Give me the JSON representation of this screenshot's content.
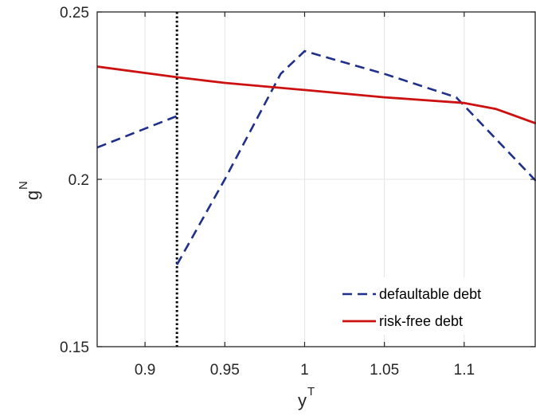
{
  "chart_data": {
    "type": "line",
    "xlabel": {
      "base": "y",
      "sup": "T"
    },
    "ylabel": {
      "base": "g",
      "sup": "N"
    },
    "xlim": [
      0.87,
      1.145
    ],
    "ylim": [
      0.15,
      0.25
    ],
    "xticks": [
      0.9,
      0.95,
      1,
      1.05,
      1.1
    ],
    "xtick_labels": [
      "0.9",
      "0.95",
      "1",
      "1.05",
      "1.1"
    ],
    "yticks": [
      0.15,
      0.2,
      0.25
    ],
    "ytick_labels": [
      "0.15",
      "0.2",
      "0.25"
    ],
    "grid": true,
    "legend_position": "bottom-right",
    "vline": {
      "x": 0.92,
      "style": "dotted",
      "color": "#000000"
    },
    "series": [
      {
        "name": "defaultable debt",
        "style": "dashed",
        "color": "#1f2f8a",
        "segments": [
          {
            "x": [
              0.87,
              0.92
            ],
            "y": [
              0.2095,
              0.2189
            ]
          },
          {
            "x": [
              0.92,
              0.95,
              0.985,
              1.0,
              1.05,
              1.095,
              1.145
            ],
            "y": [
              0.1745,
              0.2,
              0.2315,
              0.2383,
              0.2315,
              0.2245,
              0.1995
            ]
          }
        ]
      },
      {
        "name": "risk-free debt",
        "style": "solid",
        "color": "#cc1111",
        "segments": [
          {
            "x": [
              0.87,
              0.92,
              0.95,
              1.0,
              1.05,
              1.1,
              1.12,
              1.145
            ],
            "y": [
              0.2337,
              0.2305,
              0.2288,
              0.2267,
              0.2245,
              0.2228,
              0.221,
              0.2167
            ]
          }
        ]
      }
    ]
  }
}
